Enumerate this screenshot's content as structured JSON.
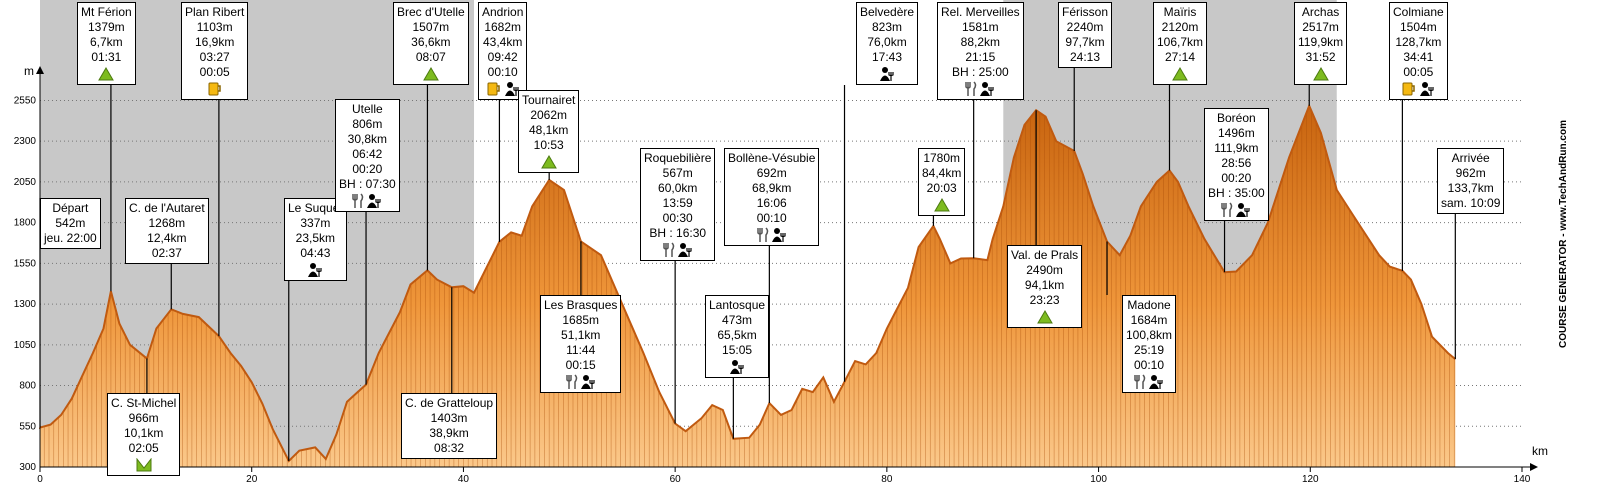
{
  "watermark": "COURSE GENERATOR - www.TechAndRun.com",
  "colors": {
    "profile_dark": "#c05a10",
    "profile_light": "#f5a850",
    "night": "#c8c8c8",
    "grid": "#777777"
  },
  "chart_data": {
    "type": "area",
    "title": "",
    "xlabel": "km",
    "ylabel": "m",
    "xlim": [
      0,
      140
    ],
    "ylim": [
      300,
      2700
    ],
    "xticks": [
      0,
      20,
      40,
      60,
      80,
      100,
      120,
      140
    ],
    "yticks": [
      300,
      550,
      800,
      1050,
      1300,
      1550,
      1800,
      2050,
      2300,
      2550
    ],
    "night_bands": [
      [
        0,
        41
      ],
      [
        91,
        122.5
      ]
    ],
    "profile": [
      [
        0,
        542
      ],
      [
        1,
        560
      ],
      [
        2,
        620
      ],
      [
        3,
        720
      ],
      [
        4,
        860
      ],
      [
        5,
        1000
      ],
      [
        6,
        1150
      ],
      [
        6.7,
        1379
      ],
      [
        7.5,
        1180
      ],
      [
        8.5,
        1050
      ],
      [
        10.1,
        966
      ],
      [
        11,
        1150
      ],
      [
        12.4,
        1268
      ],
      [
        13.5,
        1240
      ],
      [
        15,
        1220
      ],
      [
        16.9,
        1103
      ],
      [
        18,
        1000
      ],
      [
        19,
        920
      ],
      [
        20,
        820
      ],
      [
        21,
        690
      ],
      [
        22,
        530
      ],
      [
        23.5,
        337
      ],
      [
        24.5,
        400
      ],
      [
        26,
        420
      ],
      [
        27,
        350
      ],
      [
        28,
        500
      ],
      [
        29,
        700
      ],
      [
        30,
        760
      ],
      [
        30.8,
        806
      ],
      [
        32,
        1000
      ],
      [
        34,
        1250
      ],
      [
        35,
        1420
      ],
      [
        36.6,
        1507
      ],
      [
        37.5,
        1450
      ],
      [
        38.9,
        1403
      ],
      [
        40,
        1410
      ],
      [
        41,
        1370
      ],
      [
        42,
        1500
      ],
      [
        43.4,
        1682
      ],
      [
        44.5,
        1740
      ],
      [
        45.5,
        1720
      ],
      [
        46.5,
        1900
      ],
      [
        48.1,
        2062
      ],
      [
        49.5,
        2000
      ],
      [
        51.1,
        1685
      ],
      [
        53,
        1600
      ],
      [
        55,
        1300
      ],
      [
        57,
        1000
      ],
      [
        58.5,
        760
      ],
      [
        60,
        567
      ],
      [
        61,
        520
      ],
      [
        62.5,
        600
      ],
      [
        63.5,
        680
      ],
      [
        64.5,
        650
      ],
      [
        65.5,
        473
      ],
      [
        67,
        480
      ],
      [
        68,
        560
      ],
      [
        68.9,
        692
      ],
      [
        70,
        620
      ],
      [
        71,
        650
      ],
      [
        72,
        780
      ],
      [
        73,
        760
      ],
      [
        74,
        850
      ],
      [
        75,
        700
      ],
      [
        76,
        823
      ],
      [
        77,
        950
      ],
      [
        78,
        930
      ],
      [
        79,
        1000
      ],
      [
        80,
        1150
      ],
      [
        82,
        1400
      ],
      [
        83,
        1650
      ],
      [
        84.4,
        1780
      ],
      [
        85,
        1700
      ],
      [
        86,
        1550
      ],
      [
        87,
        1580
      ],
      [
        88.2,
        1581
      ],
      [
        89.5,
        1570
      ],
      [
        90,
        1700
      ],
      [
        91,
        1900
      ],
      [
        92,
        2200
      ],
      [
        93,
        2400
      ],
      [
        94.1,
        2490
      ],
      [
        95,
        2450
      ],
      [
        96,
        2300
      ],
      [
        97.7,
        2240
      ],
      [
        98.5,
        2100
      ],
      [
        99.5,
        1900
      ],
      [
        100.8,
        1684
      ],
      [
        102,
        1600
      ],
      [
        103,
        1720
      ],
      [
        104,
        1900
      ],
      [
        105.5,
        2050
      ],
      [
        106.7,
        2120
      ],
      [
        107.5,
        2050
      ],
      [
        108.5,
        1900
      ],
      [
        110,
        1700
      ],
      [
        111.9,
        1496
      ],
      [
        113,
        1500
      ],
      [
        114.5,
        1600
      ],
      [
        116,
        1800
      ],
      [
        118,
        2200
      ],
      [
        119.9,
        2517
      ],
      [
        121,
        2350
      ],
      [
        122.5,
        2000
      ],
      [
        124,
        1850
      ],
      [
        125.5,
        1700
      ],
      [
        126.5,
        1600
      ],
      [
        127.5,
        1530
      ],
      [
        128.7,
        1504
      ],
      [
        129.5,
        1450
      ],
      [
        130.5,
        1300
      ],
      [
        131.5,
        1100
      ],
      [
        133,
        1000
      ],
      [
        133.7,
        962
      ]
    ],
    "markers": [
      {
        "name": "Départ",
        "lines": [
          "Départ",
          "542m",
          "jeu. 22:00"
        ],
        "km": 0,
        "box_anchor": "below",
        "icons": []
      },
      {
        "name": "Mt Férion",
        "lines": [
          "Mt Férion",
          "1379m",
          "6,7km",
          "01:31"
        ],
        "km": 6.7,
        "box_anchor": "above",
        "icons": [
          "summit"
        ]
      },
      {
        "name": "C. St-Michel",
        "lines": [
          "C. St-Michel",
          "966m",
          "10,1km",
          "02:05"
        ],
        "km": 10.1,
        "box_anchor": "below",
        "icons": [
          "pass"
        ]
      },
      {
        "name": "C. de l'Autaret",
        "lines": [
          "C. de l'Autaret",
          "1268m",
          "12,4km",
          "02:37"
        ],
        "km": 12.4,
        "box_anchor": "above",
        "icons": []
      },
      {
        "name": "Plan Ribert",
        "lines": [
          "Plan Ribert",
          "1103m",
          "16,9km",
          "03:27",
          "00:05"
        ],
        "km": 16.9,
        "box_anchor": "above",
        "icons": [
          "drink"
        ]
      },
      {
        "name": "Le Suquet",
        "lines": [
          "Le Suquet",
          "337m",
          "23,5km",
          "04:43"
        ],
        "km": 23.5,
        "box_anchor": "above",
        "icons": [
          "help"
        ]
      },
      {
        "name": "Utelle",
        "lines": [
          "Utelle",
          "806m",
          "30,8km",
          "06:42",
          "00:20",
          "BH : 07:30"
        ],
        "km": 30.8,
        "box_anchor": "above",
        "icons": [
          "food",
          "help"
        ]
      },
      {
        "name": "Brec d'Utelle",
        "lines": [
          "Brec d'Utelle",
          "1507m",
          "36,6km",
          "08:07"
        ],
        "km": 36.6,
        "box_anchor": "above",
        "icons": [
          "summit"
        ]
      },
      {
        "name": "C. de Gratteloup",
        "lines": [
          "C. de Gratteloup",
          "1403m",
          "38,9km",
          "08:32"
        ],
        "km": 38.9,
        "box_anchor": "below",
        "icons": []
      },
      {
        "name": "Andrion",
        "lines": [
          "Andrion",
          "1682m",
          "43,4km",
          "09:42",
          "00:10"
        ],
        "km": 43.4,
        "box_anchor": "above",
        "icons": [
          "drink",
          "help"
        ]
      },
      {
        "name": "Tournairet",
        "lines": [
          "Tournairet",
          "2062m",
          "48,1km",
          "10:53"
        ],
        "km": 48.1,
        "box_anchor": "above",
        "icons": [
          "summit"
        ]
      },
      {
        "name": "Les Brasques",
        "lines": [
          "Les Brasques",
          "1685m",
          "51,1km",
          "11:44",
          "00:15"
        ],
        "km": 51.1,
        "box_anchor": "below",
        "icons": [
          "food",
          "help"
        ]
      },
      {
        "name": "Roquebilière",
        "lines": [
          "Roquebilière",
          "567m",
          "60,0km",
          "13:59",
          "00:30",
          "BH : 16:30"
        ],
        "km": 60.0,
        "box_anchor": "above",
        "icons": [
          "food",
          "help"
        ]
      },
      {
        "name": "Lantosque",
        "lines": [
          "Lantosque",
          "473m",
          "65,5km",
          "15:05"
        ],
        "km": 65.5,
        "box_anchor": "above",
        "icons": [
          "help"
        ]
      },
      {
        "name": "Bollène-Vésubie",
        "lines": [
          "Bollène-Vésubie",
          "692m",
          "68,9km",
          "16:06",
          "00:10"
        ],
        "km": 68.9,
        "box_anchor": "above",
        "icons": [
          "food",
          "help"
        ]
      },
      {
        "name": "Belvedère",
        "lines": [
          "Belvedère",
          "823m",
          "76,0km",
          "17:43"
        ],
        "km": 76.0,
        "box_anchor": "above",
        "icons": [
          "help"
        ]
      },
      {
        "name": "1780m",
        "lines": [
          "1780m",
          "84,4km",
          "20:03"
        ],
        "km": 84.4,
        "box_anchor": "above",
        "icons": [
          "summit"
        ]
      },
      {
        "name": "Rel. Merveilles",
        "lines": [
          "Rel. Merveilles",
          "1581m",
          "88,2km",
          "21:15",
          "BH : 25:00"
        ],
        "km": 88.2,
        "box_anchor": "above",
        "icons": [
          "food",
          "help"
        ]
      },
      {
        "name": "Val. de Prals",
        "lines": [
          "Val. de Prals",
          "2490m",
          "94,1km",
          "23:23"
        ],
        "km": 94.1,
        "box_anchor": "below",
        "icons": [
          "summit"
        ]
      },
      {
        "name": "Férisson",
        "lines": [
          "Férisson",
          "2240m",
          "97,7km",
          "24:13"
        ],
        "km": 97.7,
        "box_anchor": "above",
        "icons": []
      },
      {
        "name": "Madone",
        "lines": [
          "Madone",
          "1684m",
          "100,8km",
          "25:19",
          "00:10"
        ],
        "km": 100.8,
        "box_anchor": "below",
        "icons": [
          "food",
          "help"
        ]
      },
      {
        "name": "Maïris",
        "lines": [
          "Maïris",
          "2120m",
          "106,7km",
          "27:14"
        ],
        "km": 106.7,
        "box_anchor": "above",
        "icons": [
          "summit"
        ]
      },
      {
        "name": "Boréon",
        "lines": [
          "Boréon",
          "1496m",
          "111,9km",
          "28:56",
          "00:20",
          "BH : 35:00"
        ],
        "km": 111.9,
        "box_anchor": "above",
        "icons": [
          "food",
          "help"
        ]
      },
      {
        "name": "Archas",
        "lines": [
          "Archas",
          "2517m",
          "119,9km",
          "31:52"
        ],
        "km": 119.9,
        "box_anchor": "above",
        "icons": [
          "summit"
        ]
      },
      {
        "name": "Colmiane",
        "lines": [
          "Colmiane",
          "1504m",
          "128,7km",
          "34:41",
          "00:05"
        ],
        "km": 128.7,
        "box_anchor": "above",
        "icons": [
          "drink",
          "help"
        ]
      },
      {
        "name": "Arrivée",
        "lines": [
          "Arrivée",
          "962m",
          "133,7km",
          "sam. 10:09"
        ],
        "km": 133.7,
        "box_anchor": "above",
        "icons": []
      }
    ]
  }
}
